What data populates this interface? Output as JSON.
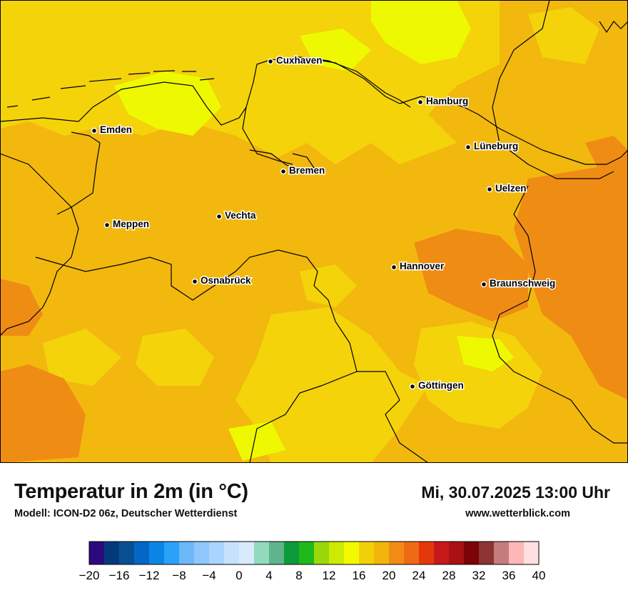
{
  "title": "Temperatur in 2m (in °C)",
  "model": "Modell: ICON-D2 06z, Deutscher Wetterdienst",
  "datetime": "Mi, 30.07.2025 13:00 Uhr",
  "website": "www.wetterblick.com",
  "cities": [
    "Cuxhaven",
    "Hamburg",
    "Emden",
    "Lüneburg",
    "Bremen",
    "Uelzen",
    "Vechta",
    "Meppen",
    "Hannover",
    "Osnabrück",
    "Braunschweig",
    "Göttingen"
  ],
  "legend": {
    "ticks": [
      "−20",
      "−16",
      "−12",
      "−8",
      "−4",
      "0",
      "4",
      "8",
      "12",
      "16",
      "20",
      "24",
      "28",
      "32",
      "36",
      "40"
    ],
    "colors": [
      "#2c0a7d",
      "#033b7a",
      "#0a4f94",
      "#0467c6",
      "#0b86e8",
      "#2ba2f7",
      "#6cb8f8",
      "#8fc6fb",
      "#a8d4fd",
      "#c8e2fd",
      "#d9eafe",
      "#93d9bd",
      "#5fb48c",
      "#0e9a3a",
      "#1fb91a",
      "#9ad80c",
      "#ccea04",
      "#f3f900",
      "#f3d10a",
      "#f2b50c",
      "#f18d14",
      "#ef6a14",
      "#e4380b",
      "#c6191a",
      "#a91114",
      "#7c0306",
      "#8c3333",
      "#c47c7c",
      "#feb6b6",
      "#ffe0e0"
    ]
  },
  "colors": {
    "base": "#f2b80e",
    "cool": "#f4d30a",
    "coolest": "#eef901",
    "warm": "#ef8c14"
  }
}
